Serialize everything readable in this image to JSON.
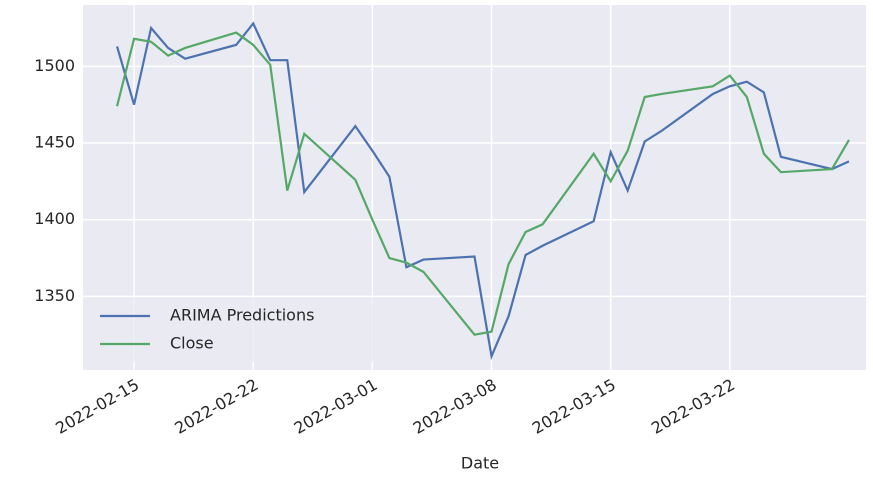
{
  "chart_data": {
    "type": "line",
    "x_label": "Date",
    "x": [
      "2022-02-14",
      "2022-02-15",
      "2022-02-16",
      "2022-02-17",
      "2022-02-18",
      "2022-02-21",
      "2022-02-22",
      "2022-02-23",
      "2022-02-24",
      "2022-02-25",
      "2022-02-28",
      "2022-03-01",
      "2022-03-02",
      "2022-03-03",
      "2022-03-04",
      "2022-03-07",
      "2022-03-08",
      "2022-03-09",
      "2022-03-10",
      "2022-03-11",
      "2022-03-14",
      "2022-03-15",
      "2022-03-16",
      "2022-03-17",
      "2022-03-18",
      "2022-03-21",
      "2022-03-22",
      "2022-03-23",
      "2022-03-24",
      "2022-03-25",
      "2022-03-28",
      "2022-03-29"
    ],
    "series": [
      {
        "name": "ARIMA Predictions",
        "color": "#4c72b0",
        "values": [
          1513,
          1475,
          1525,
          1512,
          1505,
          1514,
          1528,
          1504,
          1504,
          1418,
          1461,
          1445,
          1428,
          1369,
          1374,
          1376,
          1311,
          1337,
          1377,
          1383,
          1399,
          1444,
          1419,
          1451,
          1458,
          1482,
          1487,
          1490,
          1483,
          1441,
          1433,
          1438
        ]
      },
      {
        "name": "Close",
        "color": "#55a868",
        "values": [
          1474,
          1518,
          1516,
          1507,
          1512,
          1522,
          1514,
          1501,
          1419,
          1456,
          1426,
          1400,
          1375,
          1372,
          1366,
          1325,
          1327,
          1371,
          1392,
          1397,
          1443,
          1425,
          1445,
          1480,
          1482,
          1487,
          1494,
          1480,
          1443,
          1431,
          1433,
          1452
        ]
      }
    ],
    "xlim": [
      "2022-02-12",
      "2022-03-30"
    ],
    "xticks": [
      "2022-02-15",
      "2022-02-22",
      "2022-03-01",
      "2022-03-08",
      "2022-03-15",
      "2022-03-22"
    ],
    "ylim": [
      1302,
      1540
    ],
    "yticks": [
      1350,
      1400,
      1450,
      1500
    ],
    "grid": true,
    "legend": "lower left"
  }
}
